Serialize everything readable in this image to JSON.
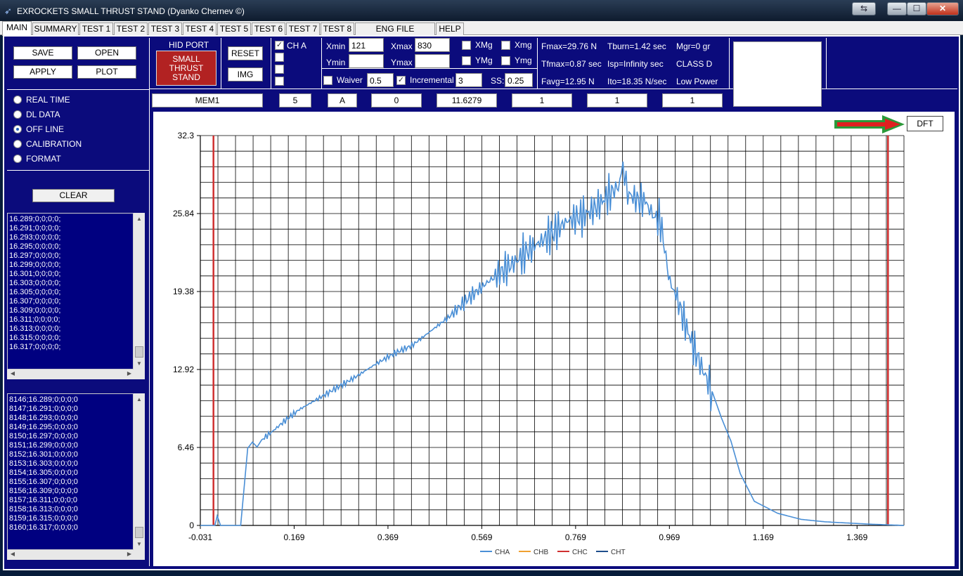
{
  "window": {
    "title": "EXROCKETS SMALL THRUST STAND   (Dyanko Chernev ©)",
    "app_icon": "rocket-icon",
    "controls": {
      "restore_down": "⇆",
      "minimize": "—",
      "maximize": "☐",
      "close": "✕"
    }
  },
  "tabs": [
    "MAIN",
    "SUMMARY",
    "TEST 1",
    "TEST 2",
    "TEST 3",
    "TEST 4",
    "TEST 5",
    "TEST 6",
    "TEST 7",
    "TEST 8",
    "ENG FILE CREATOR",
    "HELP"
  ],
  "active_tab": "MAIN",
  "file_buttons": {
    "save": "SAVE",
    "open": "OPEN",
    "apply": "APPLY",
    "plot": "PLOT"
  },
  "hid": {
    "label": "HID PORT",
    "device_line1": "SMALL",
    "device_line2": "THRUST",
    "device_line3": "STAND",
    "device_color": "#b22222"
  },
  "actions": {
    "reset": "RESET",
    "img": "IMG"
  },
  "channels": {
    "cha": {
      "label": "CH A",
      "checked": "✓"
    }
  },
  "axis_fields": {
    "xmin_label": "Xmin",
    "xmin": "121",
    "xmax_label": "Xmax",
    "xmax": "830",
    "ymin_label": "Ymin",
    "ymin": "",
    "ymax_label": "Ymax",
    "ymax": "",
    "xmg": "XMg",
    "xmg2": "Xmg",
    "ymg": "YMg",
    "ymg2": "Ymg"
  },
  "options": {
    "waiver_label": "Waiver",
    "waiver": "0.5",
    "incremental_label": "Incremental",
    "incremental_checked": "✓",
    "incremental": "3",
    "ss_label": "SS:",
    "ss": "0.25"
  },
  "stats": {
    "fmax": "Fmax=29.76 N",
    "tburn": "Tburn=1.42 sec",
    "mgr": "Mgr=0 gr",
    "tfmax": "Tfmax=0.87 sec",
    "isp": "Isp=Infinity sec",
    "class": "CLASS D",
    "favg": "Favg=12.95 N",
    "ito": "Ito=18.35 N/sec",
    "power": "Low Power"
  },
  "modes": {
    "items": [
      "REAL TIME",
      "DL DATA",
      "OFF LINE",
      "CALIBRATION",
      "FORMAT"
    ],
    "selected": "OFF LINE"
  },
  "clear_label": "CLEAR",
  "log1": [
    "16.289;0;0;0;0;",
    "16.291;0;0;0;0;",
    "16.293;0;0;0;0;",
    "16.295;0;0;0;0;",
    "16.297;0;0;0;0;",
    "16.299;0;0;0;0;",
    "16.301;0;0;0;0;",
    "16.303;0;0;0;0;",
    "16.305;0;0;0;0;",
    "16.307;0;0;0;0;",
    "16.309;0;0;0;0;",
    "16.311;0;0;0;0;",
    "16.313;0;0;0;0;",
    "16.315;0;0;0;0;",
    "16.317;0;0;0;0;"
  ],
  "log2": [
    "8146;16.289;0;0;0;0",
    "8147;16.291;0;0;0;0",
    "8148;16.293;0;0;0;0",
    "8149;16.295;0;0;0;0",
    "8150;16.297;0;0;0;0",
    "8151;16.299;0;0;0;0",
    "8152;16.301;0;0;0;0",
    "8153;16.303;0;0;0;0",
    "8154;16.305;0;0;0;0",
    "8155;16.307;0;0;0;0",
    "8156;16.309;0;0;0;0",
    "8157;16.311;0;0;0;0",
    "8158;16.313;0;0;0;0",
    "8159;16.315;0;0;0;0",
    "8160;16.317;0;0;0;0"
  ],
  "data_row": [
    "MEM1",
    "5",
    "A",
    "0",
    "11.6279",
    "1",
    "1",
    "1"
  ],
  "dft_label": "DFT",
  "chart_data": {
    "type": "line",
    "xlim": [
      -0.031,
      1.469
    ],
    "ylim": [
      0,
      32.3
    ],
    "x_ticks": [
      "-0.031",
      "0.169",
      "0.369",
      "0.569",
      "0.769",
      "0.969",
      "1.169",
      "1.369"
    ],
    "x_tick_values": [
      -0.031,
      0.169,
      0.369,
      0.569,
      0.769,
      0.969,
      1.169,
      1.369
    ],
    "y_ticks": [
      "0",
      "6.46",
      "12.92",
      "19.38",
      "25.84",
      "32.3"
    ],
    "y_tick_values": [
      0,
      6.46,
      12.92,
      19.38,
      25.84,
      32.3
    ],
    "grid": true,
    "legend_position": "bottom",
    "legend": [
      {
        "name": "CHA",
        "color": "#4a8fd6"
      },
      {
        "name": "CHB",
        "color": "#f0a030"
      },
      {
        "name": "CHC",
        "color": "#d03030"
      },
      {
        "name": "CHT",
        "color": "#1f4e8c"
      }
    ],
    "markers": {
      "x": [
        -0.003,
        1.435
      ],
      "color": "#d03030"
    },
    "series": [
      {
        "name": "CHA",
        "color": "#4a8fd6",
        "x": [
          -0.031,
          0.0,
          0.005,
          0.012,
          0.02,
          0.055,
          0.07,
          0.08,
          0.09,
          0.1,
          0.12,
          0.15,
          0.18,
          0.22,
          0.26,
          0.3,
          0.34,
          0.38,
          0.42,
          0.46,
          0.5,
          0.54,
          0.58,
          0.61,
          0.64,
          0.66,
          0.69,
          0.72,
          0.75,
          0.78,
          0.8,
          0.82,
          0.84,
          0.86,
          0.87,
          0.88,
          0.9,
          0.92,
          0.93,
          0.95,
          0.97,
          0.98,
          1.0,
          1.02,
          1.04,
          1.06,
          1.08,
          1.1,
          1.12,
          1.15,
          1.2,
          1.25,
          1.3,
          1.35,
          1.4,
          1.469
        ],
        "y": [
          0,
          0,
          0.8,
          0,
          0,
          0,
          6.4,
          6.9,
          6.5,
          7.1,
          7.7,
          8.7,
          9.6,
          10.5,
          11.4,
          12.3,
          13.3,
          14.2,
          14.9,
          16.1,
          17.3,
          18.8,
          20.1,
          21.0,
          21.8,
          22.5,
          23.4,
          24.2,
          25.2,
          25.6,
          26.0,
          26.6,
          27.4,
          28.1,
          29.76,
          27.5,
          27.0,
          26.8,
          25.8,
          25.2,
          20.0,
          19.5,
          17.0,
          14.8,
          12.9,
          11.1,
          8.9,
          7.0,
          4.3,
          2.0,
          1.0,
          0.5,
          0.3,
          0.2,
          0.1,
          0
        ]
      }
    ]
  }
}
